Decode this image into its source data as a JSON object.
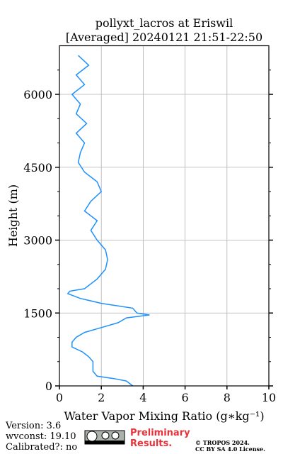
{
  "chart_data": {
    "type": "line",
    "title": [
      "pollyxt_lacros at Eriswil",
      "[Averaged] 20240121 21:51-22:50"
    ],
    "xlabel": "Water Vapor Mixing Ratio (g∗kg⁻¹)",
    "ylabel": "Height (m)",
    "color": "#1e90ff",
    "heights": [
      0,
      100,
      150,
      200,
      300,
      400,
      500,
      600,
      700,
      800,
      900,
      1000,
      1100,
      1200,
      1300,
      1400,
      1460,
      1500,
      1600,
      1700,
      1800,
      1900,
      1950,
      2000,
      2200,
      2400,
      2600,
      2800,
      3000,
      3200,
      3400,
      3600,
      3800,
      4000,
      4200,
      4400,
      4600,
      4800,
      5000,
      5200,
      5400,
      5600,
      5800,
      6000,
      6200,
      6400,
      6600,
      6800
    ],
    "values": [
      3.5,
      3.2,
      2.6,
      1.8,
      1.6,
      1.6,
      1.6,
      1.4,
      1.1,
      0.6,
      0.6,
      0.8,
      1.2,
      2.0,
      2.8,
      3.2,
      4.3,
      3.7,
      3.5,
      2.0,
      1.0,
      0.4,
      0.5,
      1.2,
      1.8,
      2.2,
      2.3,
      2.2,
      1.8,
      1.5,
      1.8,
      1.2,
      1.5,
      2.0,
      1.8,
      1.2,
      0.9,
      1.0,
      1.2,
      0.8,
      1.3,
      0.8,
      1.0,
      0.6,
      1.2,
      0.8,
      1.4,
      0.9
    ],
    "xlim": [
      0,
      10
    ],
    "xticks": [
      0,
      2,
      4,
      6,
      8,
      10
    ],
    "ylim": [
      0,
      7000
    ],
    "yticks": [
      0,
      1500,
      3000,
      4500,
      6000
    ],
    "yminor": [
      500,
      1000,
      2000,
      2500,
      3500,
      4000,
      5000,
      5500,
      6500
    ],
    "grid": true,
    "footer": {
      "version": "Version: 3.6",
      "wvconst": "wvconst:  19.10",
      "calibrated": "Calibrated?: no",
      "preliminary": [
        "Preliminary",
        "Results."
      ],
      "copyright": [
        "© TROPOS 2024.",
        "CC BY SA 4.0 License."
      ]
    }
  }
}
